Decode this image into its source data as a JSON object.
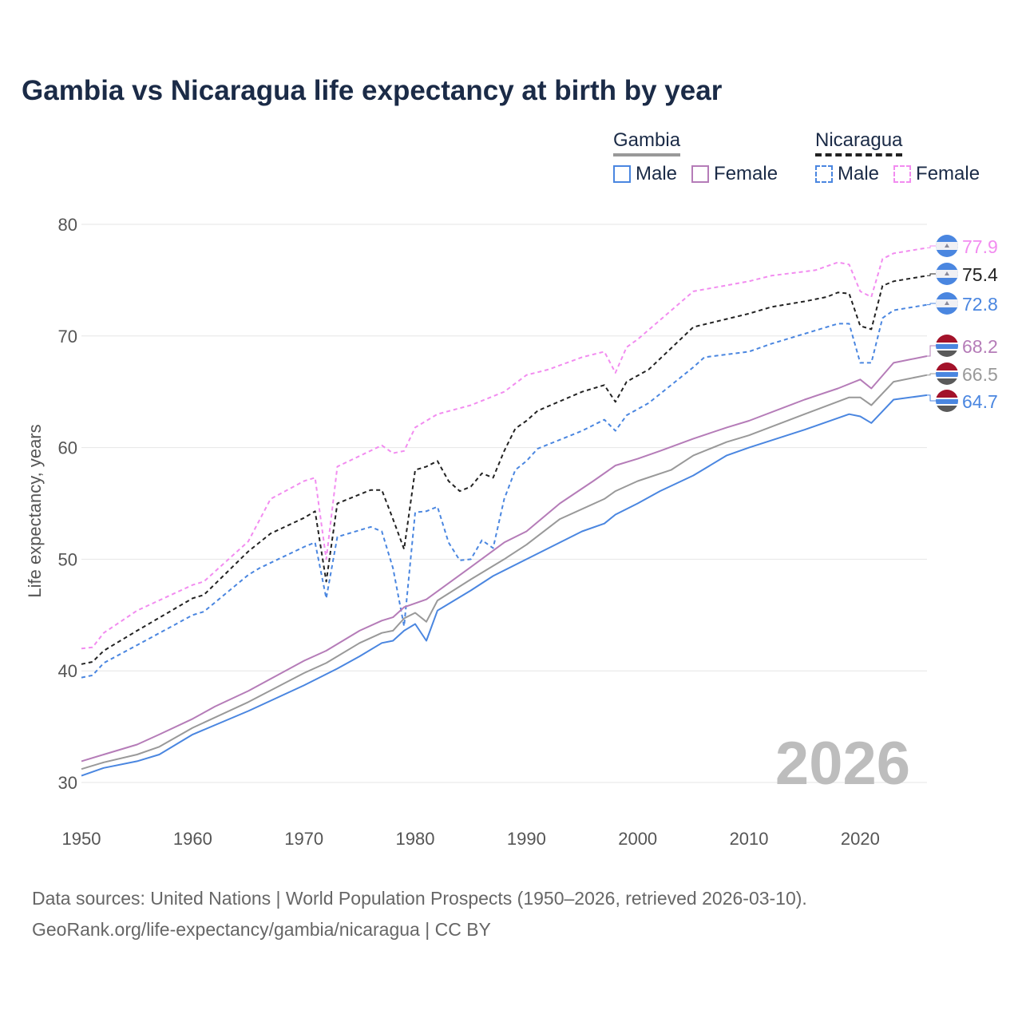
{
  "title": "Gambia vs Nicaragua life expectancy at birth by year",
  "legend": {
    "groups": [
      {
        "name": "Gambia",
        "items": [
          {
            "label": "Male",
            "color": "#4a86e0"
          },
          {
            "label": "Female",
            "color": "#b57cb8"
          }
        ]
      },
      {
        "name": "Nicaragua",
        "items": [
          {
            "label": "Male",
            "color": "#4a86e0"
          },
          {
            "label": "Female",
            "color": "#f28cf0"
          }
        ]
      }
    ]
  },
  "year_label": "2026",
  "footer": {
    "line1": "Data sources: United Nations | World Population Prospects (1950–2026, retrieved 2026-03-10).",
    "line2": "GeoRank.org/life-expectancy/gambia/nicaragua | CC BY"
  },
  "chart_data": {
    "type": "line",
    "title": "Gambia vs Nicaragua life expectancy at birth by year",
    "xlabel": "",
    "ylabel": "Life expectancy, years",
    "xlim": [
      1950,
      2026
    ],
    "ylim": [
      30,
      80
    ],
    "x_ticks": [
      1950,
      1960,
      1970,
      1980,
      1990,
      2000,
      2010,
      2020
    ],
    "y_ticks": [
      30,
      40,
      50,
      60,
      70,
      80
    ],
    "grid": true,
    "legend_position": "top-right",
    "series": [
      {
        "name": "Nicaragua Female",
        "country": "Nicaragua",
        "color": "#f28cf0",
        "dashed": true,
        "end_label": "77.9",
        "points": [
          [
            1950,
            42.0
          ],
          [
            1951,
            42.1
          ],
          [
            1952,
            43.4
          ],
          [
            1955,
            45.4
          ],
          [
            1960,
            47.7
          ],
          [
            1961,
            48.0
          ],
          [
            1965,
            51.6
          ],
          [
            1967,
            55.4
          ],
          [
            1970,
            57.0
          ],
          [
            1971,
            57.3
          ],
          [
            1972,
            50.0
          ],
          [
            1973,
            58.3
          ],
          [
            1977,
            60.2
          ],
          [
            1978,
            59.5
          ],
          [
            1979,
            59.7
          ],
          [
            1980,
            61.8
          ],
          [
            1982,
            63.0
          ],
          [
            1985,
            63.8
          ],
          [
            1988,
            65.0
          ],
          [
            1990,
            66.5
          ],
          [
            1992,
            67.0
          ],
          [
            1995,
            68.1
          ],
          [
            1997,
            68.6
          ],
          [
            1998,
            66.7
          ],
          [
            1999,
            69.0
          ],
          [
            2000,
            69.7
          ],
          [
            2005,
            74.0
          ],
          [
            2010,
            74.9
          ],
          [
            2012,
            75.4
          ],
          [
            2016,
            75.9
          ],
          [
            2018,
            76.6
          ],
          [
            2019,
            76.4
          ],
          [
            2020,
            74.0
          ],
          [
            2021,
            73.5
          ],
          [
            2022,
            76.9
          ],
          [
            2023,
            77.4
          ],
          [
            2026,
            77.9
          ]
        ]
      },
      {
        "name": "Nicaragua Total",
        "country": "Nicaragua",
        "color": "#222222",
        "dashed": true,
        "end_label": "75.4",
        "points": [
          [
            1950,
            40.6
          ],
          [
            1951,
            40.8
          ],
          [
            1952,
            41.8
          ],
          [
            1955,
            43.6
          ],
          [
            1960,
            46.5
          ],
          [
            1961,
            46.8
          ],
          [
            1965,
            50.7
          ],
          [
            1967,
            52.3
          ],
          [
            1970,
            53.7
          ],
          [
            1971,
            54.3
          ],
          [
            1972,
            48.0
          ],
          [
            1973,
            55.0
          ],
          [
            1976,
            56.2
          ],
          [
            1977,
            56.2
          ],
          [
            1978,
            53.6
          ],
          [
            1979,
            50.9
          ],
          [
            1980,
            58.0
          ],
          [
            1981,
            58.3
          ],
          [
            1982,
            58.8
          ],
          [
            1983,
            57.0
          ],
          [
            1984,
            56.1
          ],
          [
            1985,
            56.5
          ],
          [
            1986,
            57.7
          ],
          [
            1987,
            57.3
          ],
          [
            1988,
            59.7
          ],
          [
            1989,
            61.7
          ],
          [
            1990,
            62.4
          ],
          [
            1991,
            63.3
          ],
          [
            1995,
            65.0
          ],
          [
            1997,
            65.6
          ],
          [
            1998,
            64.1
          ],
          [
            1999,
            65.9
          ],
          [
            2001,
            67.0
          ],
          [
            2005,
            70.8
          ],
          [
            2010,
            72.0
          ],
          [
            2012,
            72.6
          ],
          [
            2015,
            73.1
          ],
          [
            2017,
            73.5
          ],
          [
            2018,
            73.9
          ],
          [
            2019,
            73.8
          ],
          [
            2020,
            70.9
          ],
          [
            2021,
            70.6
          ],
          [
            2022,
            74.5
          ],
          [
            2023,
            74.9
          ],
          [
            2026,
            75.4
          ]
        ]
      },
      {
        "name": "Nicaragua Male",
        "country": "Nicaragua",
        "color": "#4a86e0",
        "dashed": true,
        "end_label": "72.8",
        "points": [
          [
            1950,
            39.4
          ],
          [
            1951,
            39.6
          ],
          [
            1952,
            40.7
          ],
          [
            1955,
            42.3
          ],
          [
            1960,
            45.0
          ],
          [
            1961,
            45.3
          ],
          [
            1965,
            48.6
          ],
          [
            1966,
            49.2
          ],
          [
            1970,
            51.1
          ],
          [
            1971,
            51.5
          ],
          [
            1972,
            46.5
          ],
          [
            1973,
            52.0
          ],
          [
            1976,
            52.9
          ],
          [
            1977,
            52.5
          ],
          [
            1978,
            49.2
          ],
          [
            1979,
            44.0
          ],
          [
            1980,
            54.2
          ],
          [
            1981,
            54.3
          ],
          [
            1982,
            54.7
          ],
          [
            1983,
            51.5
          ],
          [
            1984,
            49.9
          ],
          [
            1985,
            50.0
          ],
          [
            1986,
            51.7
          ],
          [
            1987,
            51.0
          ],
          [
            1988,
            55.4
          ],
          [
            1989,
            58.0
          ],
          [
            1990,
            58.8
          ],
          [
            1991,
            59.9
          ],
          [
            1995,
            61.5
          ],
          [
            1997,
            62.5
          ],
          [
            1998,
            61.5
          ],
          [
            1999,
            62.9
          ],
          [
            2001,
            64.0
          ],
          [
            2005,
            67.2
          ],
          [
            2006,
            68.1
          ],
          [
            2010,
            68.6
          ],
          [
            2012,
            69.3
          ],
          [
            2015,
            70.2
          ],
          [
            2018,
            71.1
          ],
          [
            2019,
            71.1
          ],
          [
            2020,
            67.6
          ],
          [
            2021,
            67.6
          ],
          [
            2022,
            71.6
          ],
          [
            2023,
            72.3
          ],
          [
            2026,
            72.8
          ]
        ]
      },
      {
        "name": "Gambia Female",
        "country": "Gambia",
        "color": "#b57cb8",
        "dashed": false,
        "end_label": "68.2",
        "points": [
          [
            1950,
            31.9
          ],
          [
            1952,
            32.5
          ],
          [
            1955,
            33.4
          ],
          [
            1957,
            34.3
          ],
          [
            1960,
            35.7
          ],
          [
            1962,
            36.8
          ],
          [
            1965,
            38.2
          ],
          [
            1970,
            40.9
          ],
          [
            1972,
            41.8
          ],
          [
            1975,
            43.6
          ],
          [
            1977,
            44.5
          ],
          [
            1978,
            44.8
          ],
          [
            1979,
            45.7
          ],
          [
            1981,
            46.4
          ],
          [
            1985,
            49.3
          ],
          [
            1988,
            51.5
          ],
          [
            1990,
            52.5
          ],
          [
            1993,
            55.0
          ],
          [
            1996,
            57.0
          ],
          [
            1998,
            58.4
          ],
          [
            2000,
            59.0
          ],
          [
            2002,
            59.7
          ],
          [
            2005,
            60.8
          ],
          [
            2008,
            61.8
          ],
          [
            2010,
            62.4
          ],
          [
            2015,
            64.3
          ],
          [
            2018,
            65.3
          ],
          [
            2020,
            66.1
          ],
          [
            2021,
            65.3
          ],
          [
            2023,
            67.6
          ],
          [
            2026,
            68.2
          ]
        ]
      },
      {
        "name": "Gambia Total",
        "country": "Gambia",
        "color": "#999999",
        "dashed": false,
        "end_label": "66.5",
        "points": [
          [
            1950,
            31.2
          ],
          [
            1952,
            31.8
          ],
          [
            1955,
            32.5
          ],
          [
            1957,
            33.2
          ],
          [
            1960,
            34.9
          ],
          [
            1965,
            37.2
          ],
          [
            1970,
            39.8
          ],
          [
            1972,
            40.7
          ],
          [
            1975,
            42.5
          ],
          [
            1977,
            43.4
          ],
          [
            1978,
            43.6
          ],
          [
            1979,
            44.7
          ],
          [
            1980,
            45.2
          ],
          [
            1981,
            44.4
          ],
          [
            1982,
            46.3
          ],
          [
            1985,
            48.2
          ],
          [
            1988,
            50.0
          ],
          [
            1990,
            51.3
          ],
          [
            1993,
            53.6
          ],
          [
            1997,
            55.4
          ],
          [
            1998,
            56.1
          ],
          [
            2000,
            57.0
          ],
          [
            2003,
            58.0
          ],
          [
            2005,
            59.3
          ],
          [
            2008,
            60.5
          ],
          [
            2010,
            61.1
          ],
          [
            2015,
            63.0
          ],
          [
            2019,
            64.5
          ],
          [
            2020,
            64.5
          ],
          [
            2021,
            63.8
          ],
          [
            2023,
            65.9
          ],
          [
            2026,
            66.5
          ]
        ]
      },
      {
        "name": "Gambia Male",
        "country": "Gambia",
        "color": "#4a86e0",
        "dashed": false,
        "end_label": "64.7",
        "points": [
          [
            1950,
            30.6
          ],
          [
            1952,
            31.3
          ],
          [
            1955,
            31.9
          ],
          [
            1957,
            32.5
          ],
          [
            1960,
            34.3
          ],
          [
            1965,
            36.4
          ],
          [
            1970,
            38.7
          ],
          [
            1973,
            40.2
          ],
          [
            1975,
            41.3
          ],
          [
            1977,
            42.5
          ],
          [
            1978,
            42.7
          ],
          [
            1979,
            43.6
          ],
          [
            1980,
            44.2
          ],
          [
            1981,
            42.7
          ],
          [
            1982,
            45.4
          ],
          [
            1985,
            47.2
          ],
          [
            1987,
            48.5
          ],
          [
            1990,
            50.0
          ],
          [
            1995,
            52.5
          ],
          [
            1997,
            53.2
          ],
          [
            1998,
            54.0
          ],
          [
            2000,
            55.0
          ],
          [
            2002,
            56.1
          ],
          [
            2005,
            57.5
          ],
          [
            2008,
            59.3
          ],
          [
            2010,
            60.0
          ],
          [
            2015,
            61.6
          ],
          [
            2019,
            63.0
          ],
          [
            2020,
            62.8
          ],
          [
            2021,
            62.2
          ],
          [
            2023,
            64.3
          ],
          [
            2026,
            64.7
          ]
        ]
      }
    ]
  }
}
